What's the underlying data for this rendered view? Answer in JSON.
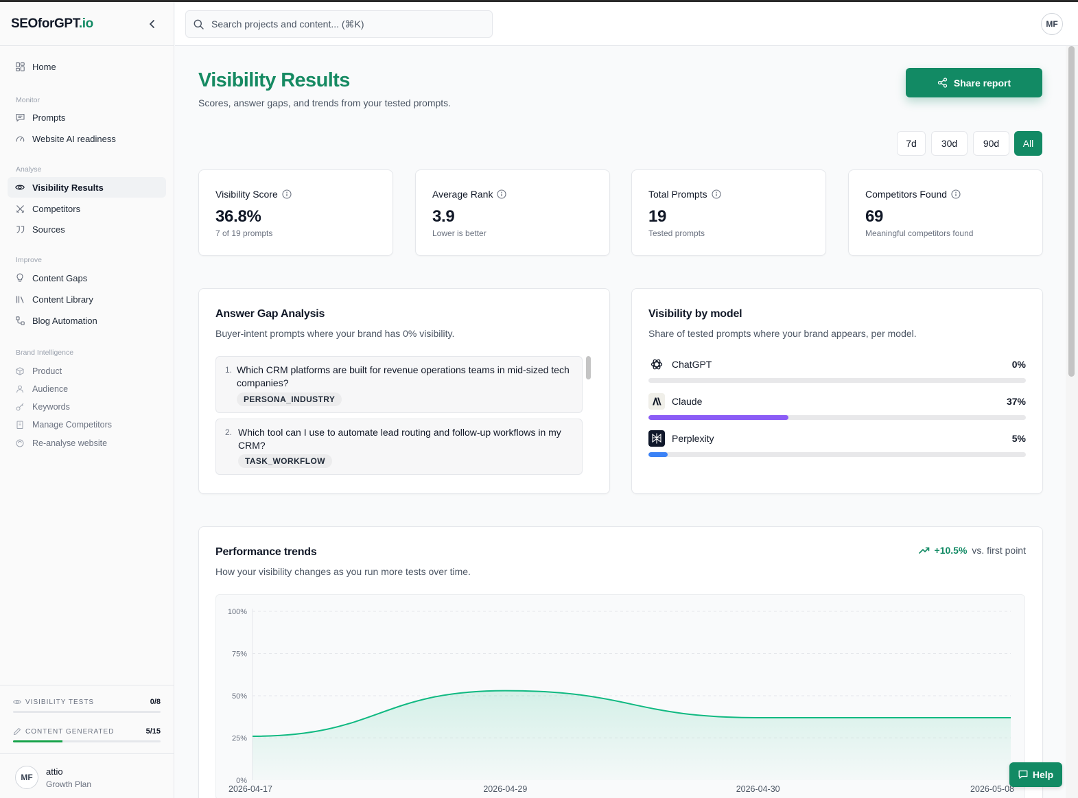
{
  "app": {
    "brand_main": "SEOforGPT",
    "brand_tld": ".io"
  },
  "search": {
    "placeholder": "Search projects and content... (⌘K)"
  },
  "user": {
    "initials": "MF",
    "workspace": "attio",
    "plan": "Growth Plan"
  },
  "sidebar": {
    "home": "Home",
    "groups": {
      "monitor": "Monitor",
      "analyse": "Analyse",
      "improve": "Improve",
      "brand": "Brand Intelligence"
    },
    "items": {
      "prompts": "Prompts",
      "website_ai_readiness": "Website AI readiness",
      "visibility_results": "Visibility Results",
      "competitors": "Competitors",
      "sources": "Sources",
      "content_gaps": "Content Gaps",
      "content_library": "Content Library",
      "blog_automation": "Blog Automation",
      "product": "Product",
      "audience": "Audience",
      "keywords": "Keywords",
      "manage_competitors": "Manage Competitors",
      "reanalyse_website": "Re-analyse website"
    },
    "active": "visibility_results"
  },
  "usage": {
    "visibility_tests": {
      "label": "VISIBILITY TESTS",
      "value": "0/8",
      "fraction": 0.0
    },
    "content_generated": {
      "label": "CONTENT GENERATED",
      "value": "5/15",
      "fraction": 0.3333
    }
  },
  "page": {
    "title": "Visibility Results",
    "subtitle": "Scores, answer gaps, and trends from your tested prompts.",
    "share_label": "Share report"
  },
  "ranges": {
    "options": [
      "7d",
      "30d",
      "90d",
      "All"
    ],
    "selected": "All"
  },
  "stats": [
    {
      "label": "Visibility Score",
      "value": "36.8%",
      "sub": "7 of 19 prompts"
    },
    {
      "label": "Average Rank",
      "value": "3.9",
      "sub": "Lower is better"
    },
    {
      "label": "Total Prompts",
      "value": "19",
      "sub": "Tested prompts"
    },
    {
      "label": "Competitors Found",
      "value": "69",
      "sub": "Meaningful competitors found"
    }
  ],
  "answer_gap": {
    "title": "Answer Gap Analysis",
    "subtitle": "Buyer-intent prompts where your brand has 0% visibility.",
    "items": [
      {
        "num": "1.",
        "text": "Which CRM platforms are built for revenue operations teams in mid-sized tech companies?",
        "tag": "PERSONA_INDUSTRY"
      },
      {
        "num": "2.",
        "text": "Which tool can I use to automate lead routing and follow-up workflows in my CRM?",
        "tag": "TASK_WORKFLOW"
      }
    ]
  },
  "models": {
    "title": "Visibility by model",
    "subtitle": "Share of tested prompts where your brand appears, per model.",
    "items": [
      {
        "name": "ChatGPT",
        "pct_label": "0%",
        "value": 0,
        "color": "#9ca3af",
        "icon": "openai-icon"
      },
      {
        "name": "Claude",
        "pct_label": "37%",
        "value": 37,
        "color": "#8b5cf6",
        "icon": "anthropic-icon"
      },
      {
        "name": "Perplexity",
        "pct_label": "5%",
        "value": 5,
        "color": "#3b82f6",
        "icon": "perplexity-icon"
      }
    ]
  },
  "trends": {
    "title": "Performance trends",
    "subtitle": "How your visibility changes as you run more tests over time.",
    "delta": "+10.5%",
    "delta_suffix": "vs. first point"
  },
  "chart_data": {
    "type": "area",
    "x": [
      "2026-04-17",
      "2026-04-29",
      "2026-04-30",
      "2026-05-08"
    ],
    "series": [
      {
        "values": [
          26,
          53,
          37,
          37
        ]
      }
    ],
    "y_ticks": [
      "100%",
      "75%",
      "50%",
      "25%",
      "0%"
    ],
    "ylim": [
      0,
      100
    ],
    "grid": true,
    "color": "#10b981"
  },
  "help": {
    "label": "Help"
  }
}
